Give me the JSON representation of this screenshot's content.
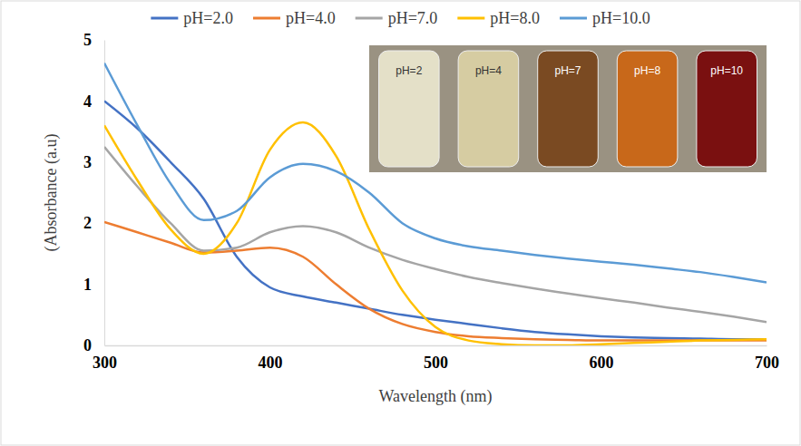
{
  "chart_data": {
    "type": "line",
    "x_label": "Wavelength (nm)",
    "y_label": "(Absorbance (a.u)",
    "x": [
      300,
      320,
      340,
      360,
      380,
      400,
      420,
      440,
      460,
      480,
      500,
      520,
      540,
      560,
      580,
      600,
      620,
      640,
      660,
      680,
      700
    ],
    "xlim": [
      300,
      700
    ],
    "xticks": [
      300,
      400,
      500,
      600,
      700
    ],
    "ylim": [
      0,
      5
    ],
    "yticks": [
      0,
      1,
      2,
      3,
      4,
      5
    ],
    "grid": false,
    "legend": "top",
    "series": [
      {
        "name": "pH=2.0",
        "color": "#4472c4",
        "values": [
          4.0,
          3.55,
          3.0,
          2.4,
          1.45,
          0.95,
          0.8,
          0.7,
          0.6,
          0.5,
          0.42,
          0.35,
          0.28,
          0.22,
          0.18,
          0.15,
          0.13,
          0.12,
          0.11,
          0.1,
          0.1
        ]
      },
      {
        "name": "pH=4.0",
        "color": "#ed7d31",
        "values": [
          2.02,
          1.85,
          1.68,
          1.52,
          1.55,
          1.6,
          1.45,
          1.0,
          0.6,
          0.35,
          0.22,
          0.15,
          0.12,
          0.1,
          0.09,
          0.08,
          0.08,
          0.08,
          0.08,
          0.08,
          0.08
        ]
      },
      {
        "name": "pH=7.0",
        "color": "#a5a5a5",
        "values": [
          3.25,
          2.6,
          2.0,
          1.55,
          1.6,
          1.85,
          1.95,
          1.85,
          1.6,
          1.4,
          1.25,
          1.12,
          1.02,
          0.93,
          0.85,
          0.77,
          0.7,
          0.62,
          0.55,
          0.47,
          0.38
        ]
      },
      {
        "name": "pH=8.0",
        "color": "#ffc000",
        "values": [
          3.6,
          2.7,
          1.9,
          1.5,
          2.0,
          3.2,
          3.65,
          3.1,
          1.9,
          0.9,
          0.3,
          0.08,
          0.02,
          0.0,
          0.0,
          0.02,
          0.04,
          0.06,
          0.08,
          0.09,
          0.1
        ]
      },
      {
        "name": "pH=10.0",
        "color": "#5b9bd5",
        "values": [
          4.62,
          3.6,
          2.65,
          2.05,
          2.2,
          2.75,
          2.97,
          2.85,
          2.5,
          2.0,
          1.75,
          1.62,
          1.55,
          1.48,
          1.42,
          1.37,
          1.32,
          1.26,
          1.2,
          1.12,
          1.03
        ]
      }
    ],
    "annotations": [
      {
        "text": "pH=2",
        "color": "#e4e0c8"
      },
      {
        "text": "pH=4",
        "color": "#d6cca2"
      },
      {
        "text": "pH=7",
        "color": "#7a4a22"
      },
      {
        "text": "pH=8",
        "color": "#c8681a"
      },
      {
        "text": "pH=10",
        "color": "#7a1010"
      }
    ]
  }
}
